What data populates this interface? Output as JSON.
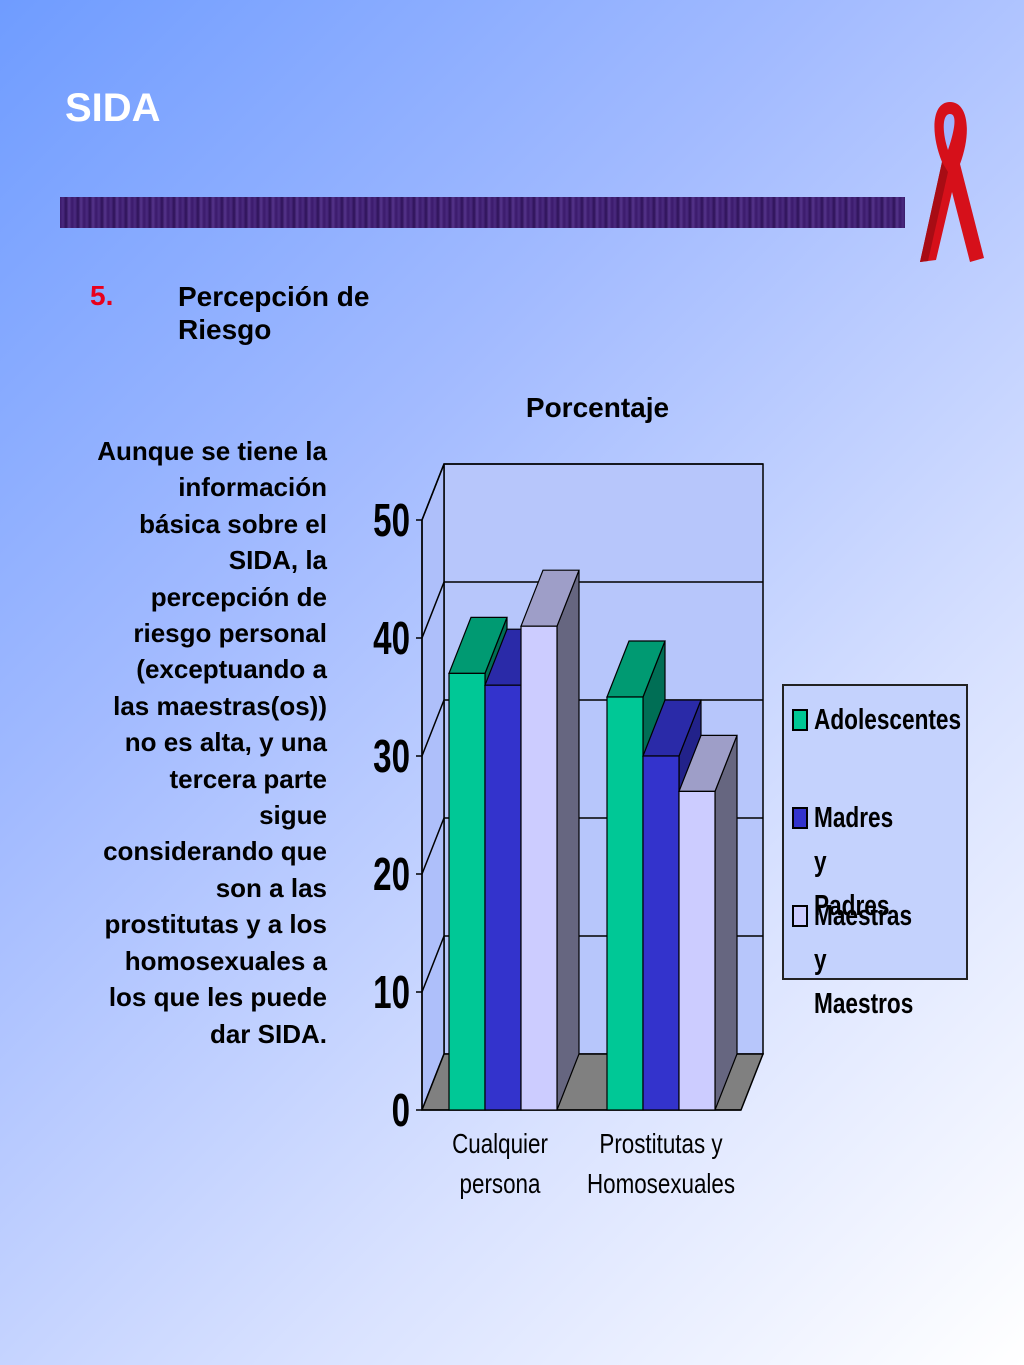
{
  "slide": {
    "title": "SIDA",
    "point_number": "5.",
    "point_text": "Percepción de Riesgo",
    "body_text": "Aunque se tiene la información básica sobre el SIDA,  la percepción de riesgo personal (exceptuando a las maestras(os)) no es alta, y una tercera parte sigue considerando que son a las prostitutas y a los homosexuales a los que les puede dar SIDA."
  },
  "chart_data": {
    "type": "bar",
    "title": "Porcentaje",
    "categories": [
      "Cualquier persona",
      "Prostitutas y Homosexuales"
    ],
    "series": [
      {
        "name": "Adolescentes",
        "values": [
          37,
          35
        ],
        "color": "#00c896"
      },
      {
        "name": "Madres y Padres",
        "values": [
          36,
          30
        ],
        "color": "#3333cc"
      },
      {
        "name": "Maestras y Maestros",
        "values": [
          41,
          27
        ],
        "color": "#ccccff"
      }
    ],
    "ylim": [
      0,
      50
    ],
    "yticks": [
      0,
      10,
      20,
      30,
      40,
      50
    ],
    "grid": true,
    "legend_position": "right"
  }
}
